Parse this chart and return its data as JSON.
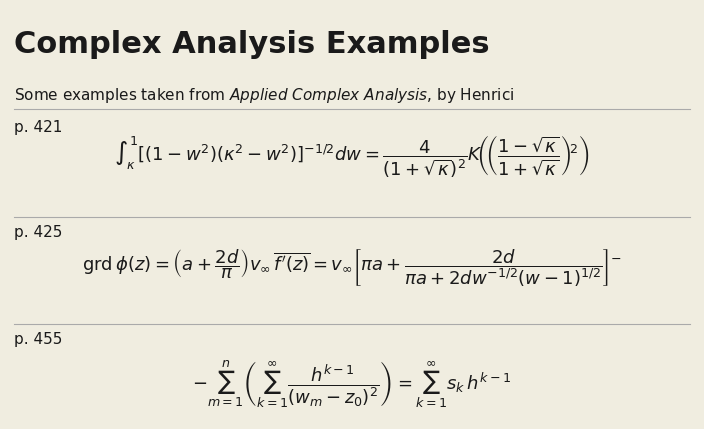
{
  "background_color": "#f0ede0",
  "title": "Complex Analysis Examples",
  "subtitle": "Some examples taken from \\textit{Applied Complex Analysis}, by Henrici",
  "page_refs": [
    "p. 421",
    "p. 425",
    "p. 455"
  ],
  "equations": [
    "\\int_{\\kappa}^{1} \\left[(1-w^2)(\\kappa^2-w^2)\\right]^{-1/2} dw = \\frac{4}{\\left(1+\\sqrt{\\kappa}\\right)^2} K\\!\\left(\\!\\left(\\frac{1-\\sqrt{\\kappa}}{1+\\sqrt{\\kappa}}\\right)^{\\!2}\\right)",
    "\\mathrm{grd}\\,\\phi(z) = \\left(a+\\frac{2d}{\\pi}\\right)v_{\\infty}\\,\\overline{f'(z)} = v_{\\infty}\\left[\\pi a + \\frac{2d}{\\pi a + 2dw^{-1/2}(w-1)^{1/2}}\\right]^{-}",
    "-\\sum_{m=1}^{n}\\left(\\sum_{k=1}^{\\infty}\\frac{h^{k-1}}{(w_m - z_0)^2}\\right) = \\sum_{k=1}^{\\infty} s_k\\, h^{k-1}"
  ],
  "text_color": "#1a1a1a",
  "line_color": "#aaaaaa",
  "title_fontsize": 22,
  "subtitle_fontsize": 11,
  "ref_fontsize": 11,
  "eq_fontsize": 13
}
